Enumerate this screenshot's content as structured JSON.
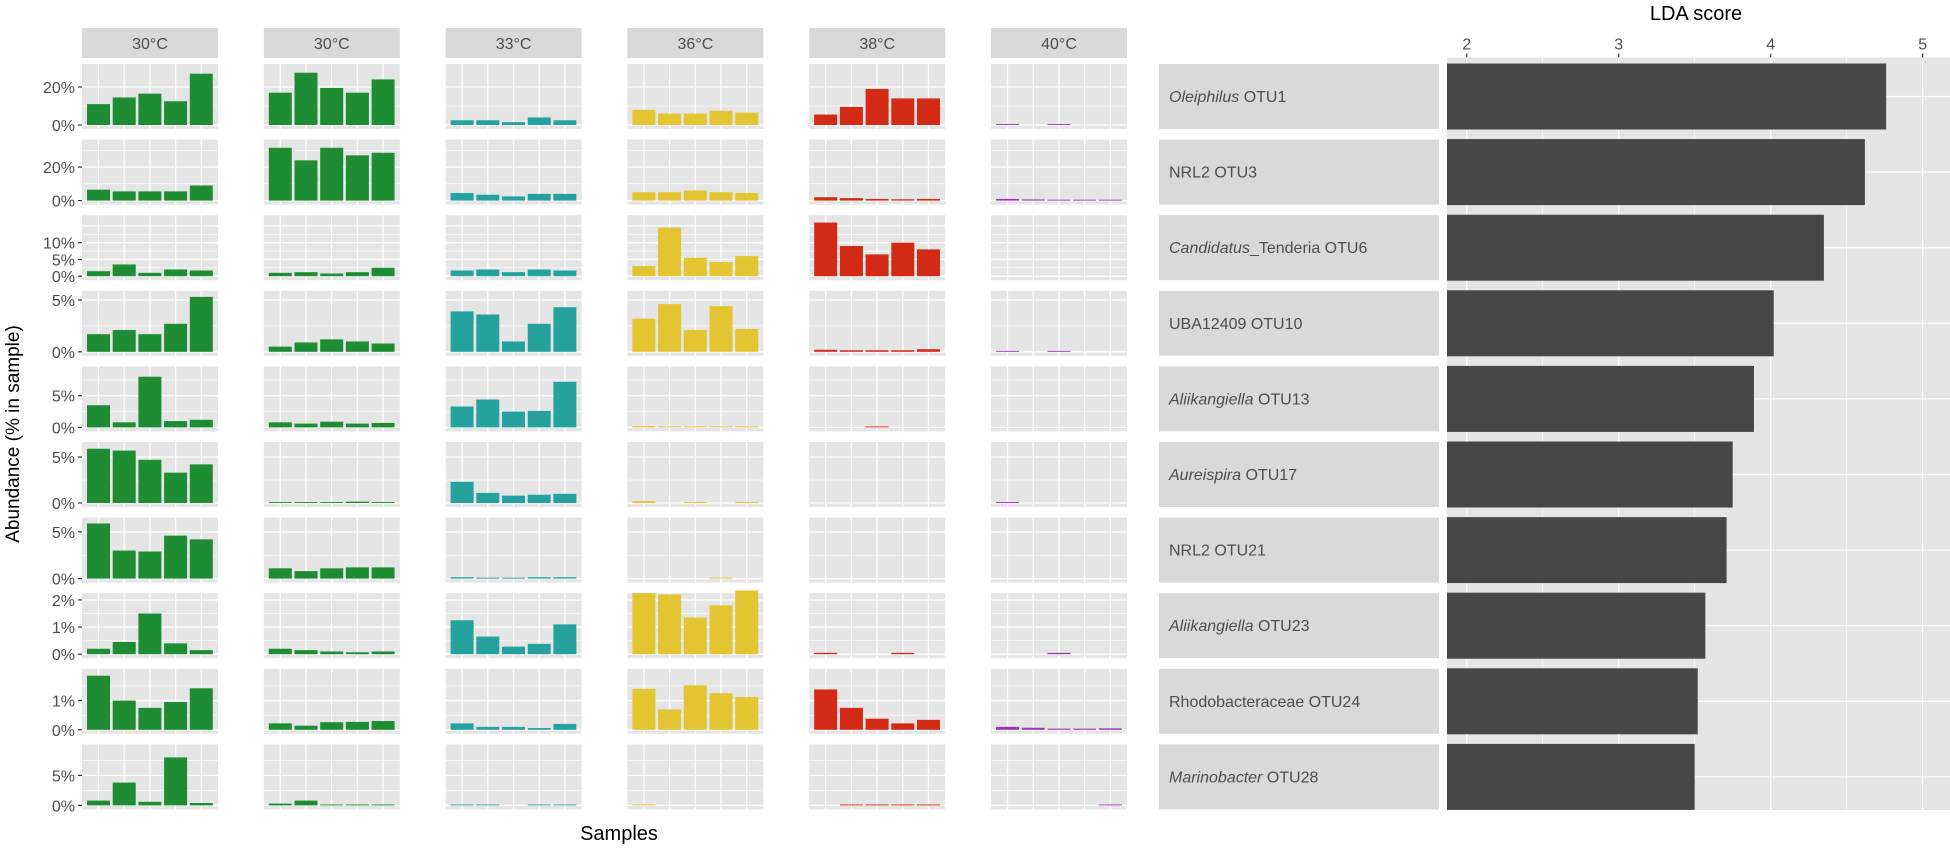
{
  "chart_data": [
    {
      "type": "bar",
      "title": "",
      "xlabel": "Samples",
      "ylabel": "Abundance (% in sample)",
      "facet_columns": [
        "30°C",
        "30°C",
        "33°C",
        "36°C",
        "38°C",
        "40°C"
      ],
      "column_colors": [
        "#1e8c32",
        "#1e8c32",
        "#25a29e",
        "#e2c530",
        "#d22a14",
        "#9c35b8"
      ],
      "otus": [
        {
          "label_italic": "Oleiphilus",
          "label_rest": " OTU1",
          "ymax": 30,
          "ticks": [
            {
              "v": 0,
              "t": "0%"
            },
            {
              "v": 20,
              "t": "20%"
            }
          ],
          "values": [
            [
              11,
              14.5,
              16.5,
              12.5,
              27
            ],
            [
              17,
              27.5,
              19.5,
              17,
              24
            ],
            [
              2.5,
              2.5,
              1.5,
              4,
              2.5
            ],
            [
              8,
              6,
              6,
              7.5,
              6.5
            ],
            [
              5.5,
              9.5,
              19,
              14,
              14
            ],
            [
              0.4,
              0,
              0.4,
              0,
              0
            ]
          ]
        },
        {
          "label_italic": "",
          "label_rest": "NRL2 OTU3",
          "ymax": 34,
          "ticks": [
            {
              "v": 0,
              "t": "0%"
            },
            {
              "v": 20,
              "t": "20%"
            }
          ],
          "values": [
            [
              6.5,
              5.5,
              5.5,
              5.5,
              9
            ],
            [
              31.5,
              24,
              31.5,
              27,
              28.5
            ],
            [
              4.5,
              3.5,
              2.5,
              4,
              4
            ],
            [
              5,
              5,
              6,
              5,
              4.5
            ],
            [
              2,
              1.5,
              1,
              0.8,
              1
            ],
            [
              1,
              0.7,
              0.5,
              0.4,
              0.5
            ]
          ]
        },
        {
          "label_italic": "Candidatus",
          "label_rest": "_Tenderia OTU6",
          "ymax": 17,
          "ticks": [
            {
              "v": 0,
              "t": "0%"
            },
            {
              "v": 5,
              "t": "5%"
            },
            {
              "v": 10,
              "t": "10%"
            }
          ],
          "values": [
            [
              1.5,
              3.5,
              1,
              2,
              1.7
            ],
            [
              1,
              1.2,
              0.8,
              1.2,
              2.5
            ],
            [
              1.7,
              2,
              1.2,
              2,
              1.7
            ],
            [
              3,
              14.5,
              5.5,
              4.2,
              6
            ],
            [
              16,
              9,
              6.5,
              10,
              8
            ],
            [
              0,
              0,
              0,
              0,
              0
            ]
          ]
        },
        {
          "label_italic": "",
          "label_rest": "UBA12409 OTU10",
          "ymax": 5.5,
          "ticks": [
            {
              "v": 0,
              "t": "0%"
            },
            {
              "v": 5,
              "t": "5%"
            }
          ],
          "values": [
            [
              1.7,
              2.1,
              1.7,
              2.7,
              5.3
            ],
            [
              0.5,
              0.9,
              1.2,
              1,
              0.8
            ],
            [
              3.9,
              3.6,
              1,
              2.7,
              4.3
            ],
            [
              3.2,
              4.6,
              2.1,
              4.4,
              2.2
            ],
            [
              0.2,
              0.15,
              0.15,
              0.15,
              0.25
            ],
            [
              0.05,
              0,
              0.08,
              0,
              0
            ]
          ]
        },
        {
          "label_italic": "Aliikangiella",
          "label_rest": " OTU13",
          "ymax": 9,
          "ticks": [
            {
              "v": 0,
              "t": "0%"
            },
            {
              "v": 5,
              "t": "5%"
            }
          ],
          "values": [
            [
              3.5,
              0.8,
              8,
              1,
              1.2
            ],
            [
              0.8,
              0.6,
              0.9,
              0.6,
              0.7
            ],
            [
              3.3,
              4.4,
              2.5,
              2.6,
              7.2
            ],
            [
              0.2,
              0.1,
              0.1,
              0.1,
              0.1
            ],
            [
              0,
              0,
              0.1,
              0,
              0
            ],
            [
              0,
              0,
              0,
              0,
              0
            ]
          ]
        },
        {
          "label_italic": "Aureispira",
          "label_rest": " OTU17",
          "ymax": 6.2,
          "ticks": [
            {
              "v": 0,
              "t": "0%"
            },
            {
              "v": 5,
              "t": "5%"
            }
          ],
          "values": [
            [
              5.9,
              5.7,
              4.7,
              3.3,
              4.2
            ],
            [
              0.05,
              0.1,
              0.05,
              0.15,
              0.1
            ],
            [
              2.3,
              1.1,
              0.8,
              0.9,
              1
            ],
            [
              0.2,
              0,
              0.05,
              0,
              0.1
            ],
            [
              0,
              0,
              0,
              0,
              0
            ],
            [
              0.1,
              0,
              0,
              0,
              0
            ]
          ]
        },
        {
          "label_italic": "",
          "label_rest": "NRL2 OTU21",
          "ymax": 6.1,
          "ticks": [
            {
              "v": 0,
              "t": "0%"
            },
            {
              "v": 5,
              "t": "5%"
            }
          ],
          "values": [
            [
              5.9,
              3,
              2.9,
              4.6,
              4.2
            ],
            [
              1.1,
              0.8,
              1.1,
              1.2,
              1.2
            ],
            [
              0.15,
              0.1,
              0.1,
              0.15,
              0.15
            ],
            [
              0,
              0,
              0,
              0.1,
              0
            ],
            [
              0,
              0,
              0,
              0,
              0
            ],
            [
              0,
              0,
              0,
              0,
              0
            ]
          ]
        },
        {
          "label_italic": "Aliikangiella",
          "label_rest": " OTU23",
          "ymax": 2.1,
          "ticks": [
            {
              "v": 0,
              "t": "0%"
            },
            {
              "v": 1,
              "t": "1%"
            },
            {
              "v": 2,
              "t": "2%"
            }
          ],
          "values": [
            [
              0.2,
              0.45,
              1.5,
              0.4,
              0.15
            ],
            [
              0.2,
              0.15,
              0.1,
              0.07,
              0.1
            ],
            [
              1.25,
              0.65,
              0.28,
              0.38,
              1.1
            ],
            [
              2.25,
              2.2,
              1.35,
              1.8,
              2.35
            ],
            [
              0.05,
              0,
              0,
              0.05,
              0
            ],
            [
              0,
              0,
              0.05,
              0,
              0
            ]
          ]
        },
        {
          "label_italic": "",
          "label_rest": "Rhodobacteraceae OTU24",
          "ymax": 1.95,
          "ticks": [
            {
              "v": 0,
              "t": "0%"
            },
            {
              "v": 1,
              "t": "1%"
            }
          ],
          "values": [
            [
              1.85,
              1,
              0.75,
              0.95,
              1.42
            ],
            [
              0.22,
              0.14,
              0.26,
              0.27,
              0.3
            ],
            [
              0.22,
              0.1,
              0.1,
              0.06,
              0.2
            ],
            [
              1.4,
              0.7,
              1.52,
              1.25,
              1.12
            ],
            [
              1.38,
              0.75,
              0.38,
              0.22,
              0.34
            ],
            [
              0.1,
              0.07,
              0.04,
              0.04,
              0.05
            ]
          ]
        },
        {
          "label_italic": "Marinobacter",
          "label_rest": " OTU28",
          "ymax": 9.5,
          "ticks": [
            {
              "v": 0,
              "t": "0%"
            },
            {
              "v": 5,
              "t": "5%"
            }
          ],
          "values": [
            [
              0.8,
              3.8,
              0.6,
              8,
              0.4
            ],
            [
              0.3,
              0.8,
              0.1,
              0.1,
              0.1
            ],
            [
              0.05,
              0.05,
              0,
              0.05,
              0.05
            ],
            [
              0.1,
              0,
              0,
              0,
              0
            ],
            [
              0,
              0.1,
              0.1,
              0.1,
              0.15
            ],
            [
              0,
              0,
              0,
              0,
              0.1
            ]
          ]
        }
      ]
    },
    {
      "type": "bar",
      "orientation": "horizontal",
      "title": "LDA score",
      "xlim": [
        1.87,
        5.18
      ],
      "xticks": [
        2,
        3,
        4,
        5
      ],
      "tick_labels": [
        "2",
        "3",
        "4",
        "5"
      ],
      "color": "#474747",
      "categories": [
        "Oleiphilus OTU1",
        "NRL2 OTU3",
        "Candidatus_Tenderia OTU6",
        "UBA12409 OTU10",
        "Aliikangiella OTU13",
        "Aureispira OTU17",
        "NRL2 OTU21",
        "Aliikangiella OTU23",
        "Rhodobacteraceae OTU24",
        "Marinobacter OTU28"
      ],
      "values": [
        4.76,
        4.62,
        4.35,
        4.02,
        3.89,
        3.75,
        3.71,
        3.57,
        3.52,
        3.5
      ]
    }
  ]
}
